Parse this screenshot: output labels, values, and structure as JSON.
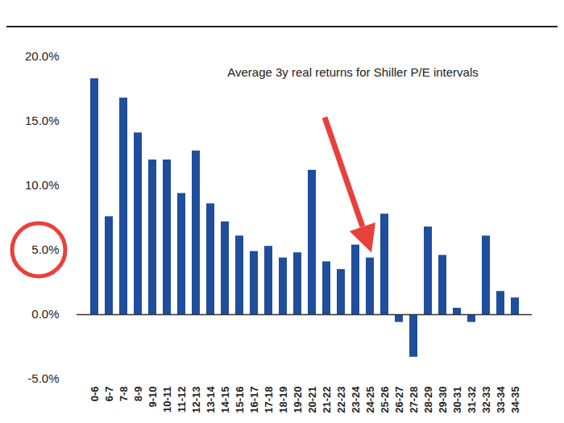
{
  "chart_data": {
    "type": "bar",
    "title": "Average 3y real returns for Shiller P/E intervals",
    "categories": [
      "0-6",
      "6-7",
      "7-8",
      "8-9",
      "9-10",
      "10-11",
      "11-12",
      "12-13",
      "13-14",
      "14-15",
      "15-16",
      "16-17",
      "17-18",
      "18-19",
      "19-20",
      "20-21",
      "21-22",
      "22-23",
      "23-24",
      "24-25",
      "25-26",
      "26-27",
      "27-28",
      "28-29",
      "29-30",
      "30-31",
      "31-32",
      "32-33",
      "33-34",
      "34-35"
    ],
    "values": [
      18.3,
      7.6,
      16.8,
      14.1,
      12.0,
      12.0,
      9.4,
      12.7,
      8.6,
      7.2,
      6.1,
      4.9,
      5.3,
      4.4,
      4.8,
      11.2,
      4.1,
      3.5,
      5.4,
      4.4,
      7.8,
      -0.6,
      -3.3,
      6.8,
      4.6,
      0.5,
      -0.6,
      6.1,
      1.8,
      1.3
    ],
    "color": "#1f4e9c",
    "ylim": [
      -5,
      20
    ],
    "yticks": [
      {
        "value": -5,
        "label": "-5.0%"
      },
      {
        "value": 0,
        "label": "0.0%"
      },
      {
        "value": 5,
        "label": "5.0%"
      },
      {
        "value": 10,
        "label": "10.0%"
      },
      {
        "value": 15,
        "label": "15.0%"
      },
      {
        "value": 20,
        "label": "20.0%"
      }
    ],
    "grid": false
  }
}
